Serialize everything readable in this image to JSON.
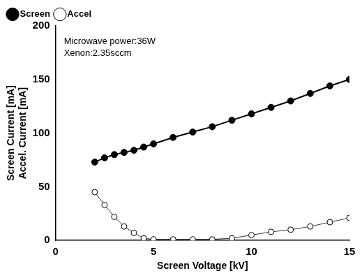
{
  "chart_data": {
    "type": "scatter",
    "x_label": "Screen Voltage [kV]",
    "y_label": [
      "Screen Current [mA]",
      "Accel. Current [mA]"
    ],
    "annotations": [
      "Microwave power:36W",
      "Xenon:2.35sccm"
    ],
    "xlim": [
      0,
      15
    ],
    "xticks": [
      0,
      5,
      10,
      15
    ],
    "ylim": [
      0,
      200
    ],
    "yticks": [
      0,
      50,
      100,
      150,
      200
    ],
    "grid": false,
    "legend": "top left",
    "series": [
      {
        "name": "Screen",
        "color": "#000000",
        "marker": "filled_circle",
        "line_style": "solid",
        "x": [
          2,
          2.5,
          3,
          3.5,
          4,
          4.5,
          5,
          6,
          7,
          8,
          9,
          10,
          11,
          12,
          13,
          14,
          15
        ],
        "values": [
          73,
          77,
          80,
          82,
          84,
          87,
          90,
          96,
          101,
          106,
          112,
          118,
          124,
          130,
          137,
          144,
          150
        ]
      },
      {
        "name": "Accel",
        "color": "#000000",
        "marker": "open_circle",
        "line_style": "solid",
        "x": [
          2,
          2.5,
          3,
          3.5,
          4,
          4.5,
          5,
          6,
          7,
          8,
          9,
          10,
          11,
          12,
          13,
          14,
          15
        ],
        "values": [
          45,
          33,
          22,
          13,
          7,
          2,
          1,
          1,
          1,
          1,
          2,
          5,
          8,
          10,
          13,
          17,
          21
        ]
      }
    ]
  }
}
